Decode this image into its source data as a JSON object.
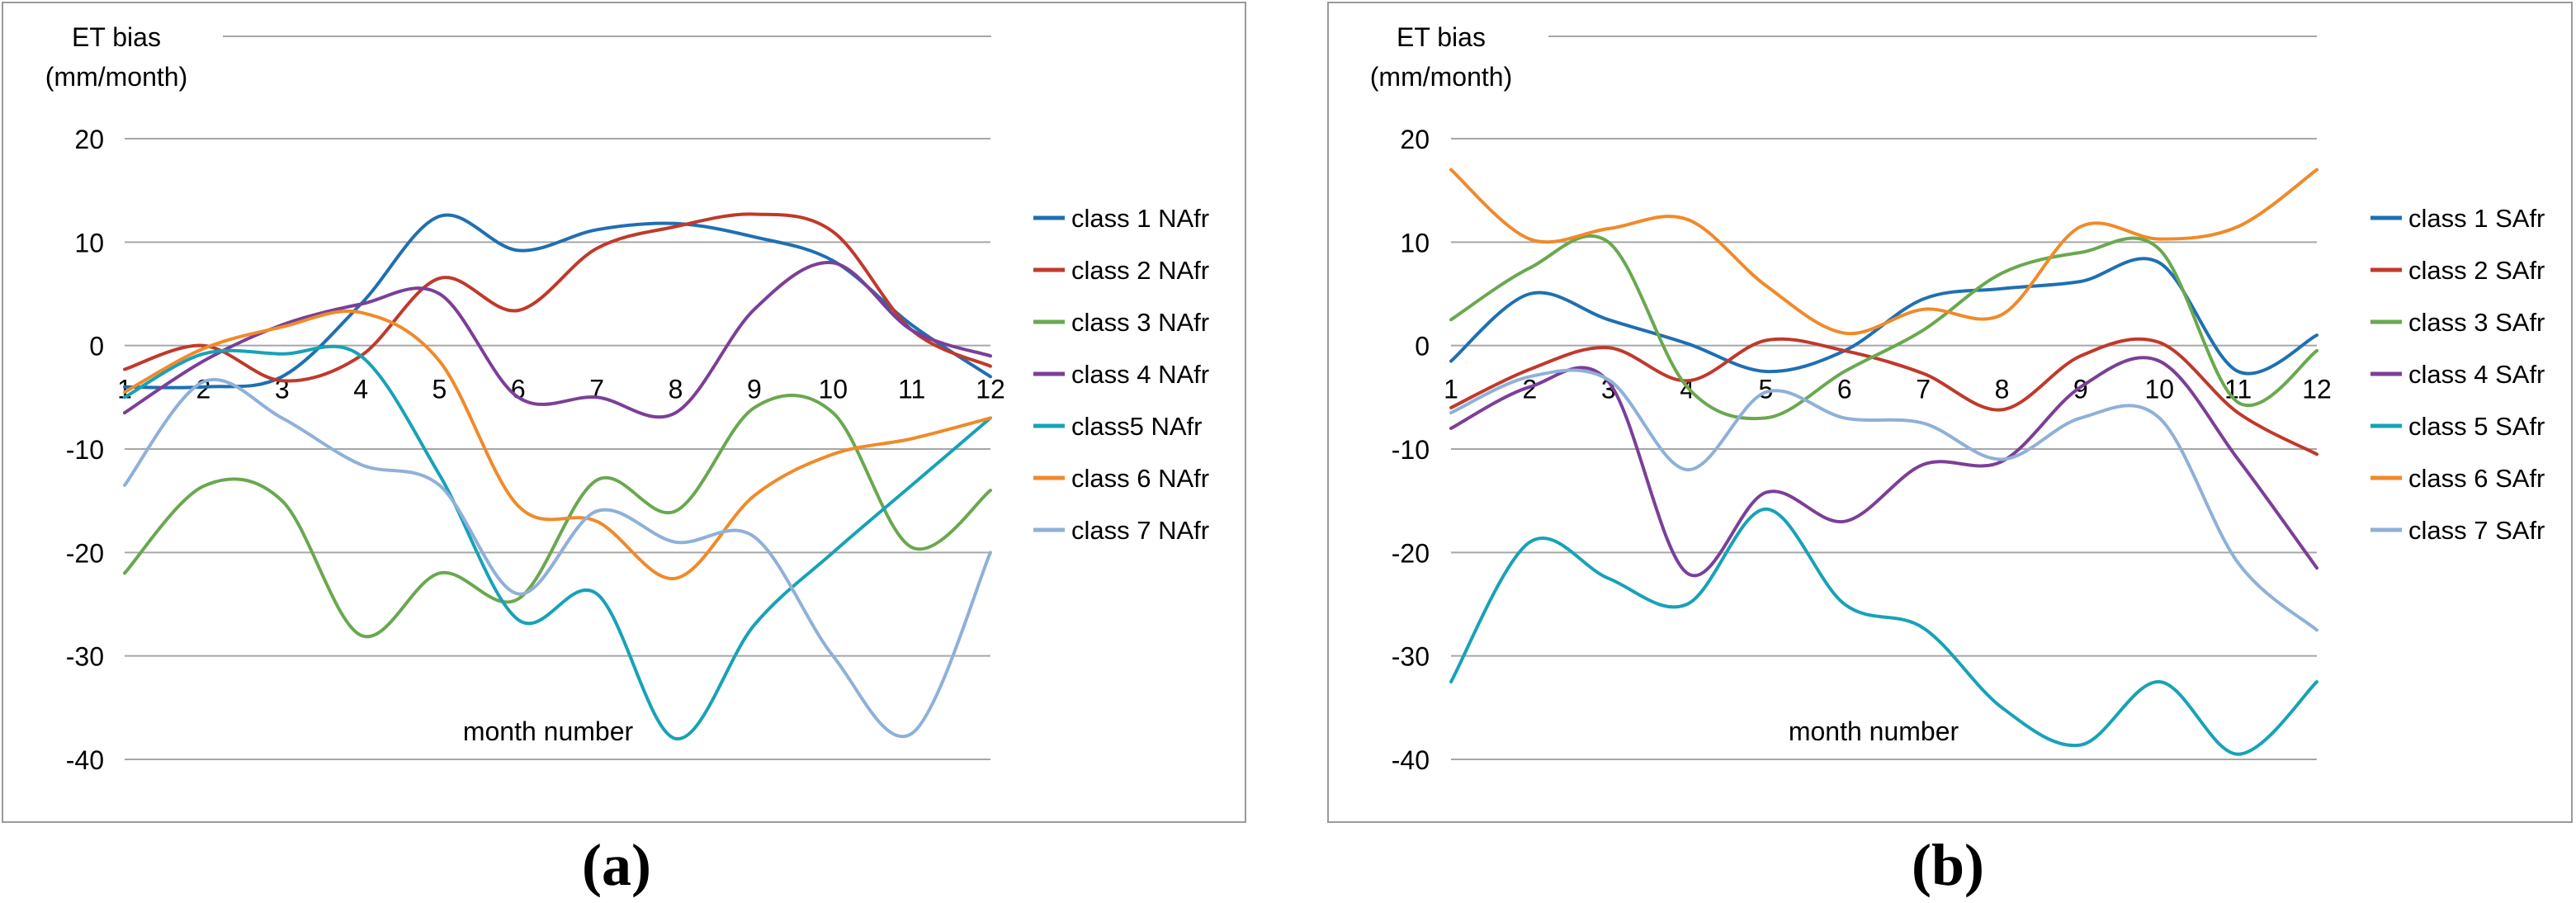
{
  "panel_labels": [
    "(a)",
    "(b)"
  ],
  "colors": {
    "series": [
      "#1f6fb2",
      "#c0392b",
      "#6aa84f",
      "#7b3f98",
      "#17a2b8",
      "#f08a2a",
      "#8fb0d8"
    ],
    "gridline": "#a6a6a6",
    "border": "#9a9a9a"
  },
  "chart_data": [
    {
      "type": "line",
      "panel": "(a)",
      "ylabel_line1": "ET bias",
      "ylabel_line2": "(mm/month)",
      "xlabel": "month number",
      "x": [
        1,
        2,
        3,
        4,
        5,
        6,
        7,
        8,
        9,
        10,
        11,
        12
      ],
      "ylim": [
        -40,
        20
      ],
      "yticks": [
        20,
        10,
        0,
        -10,
        -20,
        -30,
        -40
      ],
      "legend_position": "right",
      "smooth": true,
      "series": [
        {
          "name": "class 1 NAfr",
          "values": [
            -4,
            -4,
            -3,
            4,
            12.5,
            9.2,
            11.2,
            11.8,
            10.5,
            8.2,
            2,
            -3
          ]
        },
        {
          "name": "class 2 NAfr",
          "values": [
            -2.3,
            0,
            -3.4,
            -1,
            6.5,
            3.4,
            9.4,
            11.5,
            12.7,
            11,
            1.5,
            -2
          ]
        },
        {
          "name": "class 3 NAfr",
          "values": [
            -22,
            -13.6,
            -15,
            -28,
            -22,
            -24.5,
            -13,
            -16,
            -6,
            -6.5,
            -19.5,
            -14
          ]
        },
        {
          "name": "class 4 NAfr",
          "values": [
            -6.5,
            -1.5,
            2,
            4,
            5,
            -5,
            -5,
            -6.5,
            3.5,
            8,
            1.5,
            -1
          ]
        },
        {
          "name": "class5 NAfr",
          "values": [
            -5,
            -0.8,
            -0.8,
            -1,
            -12.5,
            -26.5,
            -24,
            -38,
            -27,
            -20,
            -13.5,
            -7
          ]
        },
        {
          "name": "class 6 NAfr",
          "values": [
            -4.5,
            -0.3,
            1.8,
            3.2,
            -1.5,
            -15.5,
            -17,
            -22.5,
            -14.5,
            -10.5,
            -9,
            -7
          ]
        },
        {
          "name": "class 7 NAfr",
          "values": [
            -13.5,
            -3.5,
            -7,
            -11.5,
            -13.5,
            -24,
            -16,
            -19,
            -18.5,
            -30,
            -37.5,
            -20
          ]
        }
      ]
    },
    {
      "type": "line",
      "panel": "(b)",
      "ylabel_line1": "ET bias",
      "ylabel_line2": "(mm/month)",
      "xlabel": "month number",
      "x": [
        1,
        2,
        3,
        4,
        5,
        6,
        7,
        8,
        9,
        10,
        11,
        12
      ],
      "ylim": [
        -40,
        20
      ],
      "yticks": [
        20,
        10,
        0,
        -10,
        -20,
        -30,
        -40
      ],
      "legend_position": "right",
      "smooth": true,
      "series": [
        {
          "name": "class 1 SAfr",
          "values": [
            -1.5,
            5,
            2.5,
            0.2,
            -2.5,
            -0.5,
            4.5,
            5.5,
            6.2,
            8,
            -2.5,
            1
          ]
        },
        {
          "name": "class 2 SAfr",
          "values": [
            -6,
            -2.3,
            -0.2,
            -3.4,
            0.5,
            -0.5,
            -2.7,
            -6.2,
            -1,
            0.3,
            -6.5,
            -10.5
          ]
        },
        {
          "name": "class 3 SAfr",
          "values": [
            2.5,
            7.5,
            10,
            -4,
            -7,
            -2.5,
            1.5,
            7,
            9,
            9.3,
            -5.5,
            -0.5
          ]
        },
        {
          "name": "class 4 SAfr",
          "values": [
            -8,
            -4,
            -3.5,
            -22,
            -14.2,
            -17,
            -11.5,
            -11.2,
            -4,
            -1.5,
            -11,
            -21.5
          ]
        },
        {
          "name": "class 5 SAfr",
          "values": [
            -32.5,
            -19,
            -22.5,
            -25,
            -15.8,
            -25,
            -27.3,
            -35,
            -38.6,
            -32.5,
            -39.5,
            -32.5
          ]
        },
        {
          "name": "class 6 SAfr",
          "values": [
            17,
            10.3,
            11.3,
            12.2,
            5.8,
            1.2,
            3.5,
            3,
            11.5,
            10.3,
            11.5,
            17
          ]
        },
        {
          "name": "class 7 SAfr",
          "values": [
            -6.5,
            -3,
            -3.3,
            -12,
            -4.5,
            -7,
            -7.5,
            -11,
            -7,
            -7,
            -21,
            -27.5
          ]
        }
      ]
    }
  ]
}
